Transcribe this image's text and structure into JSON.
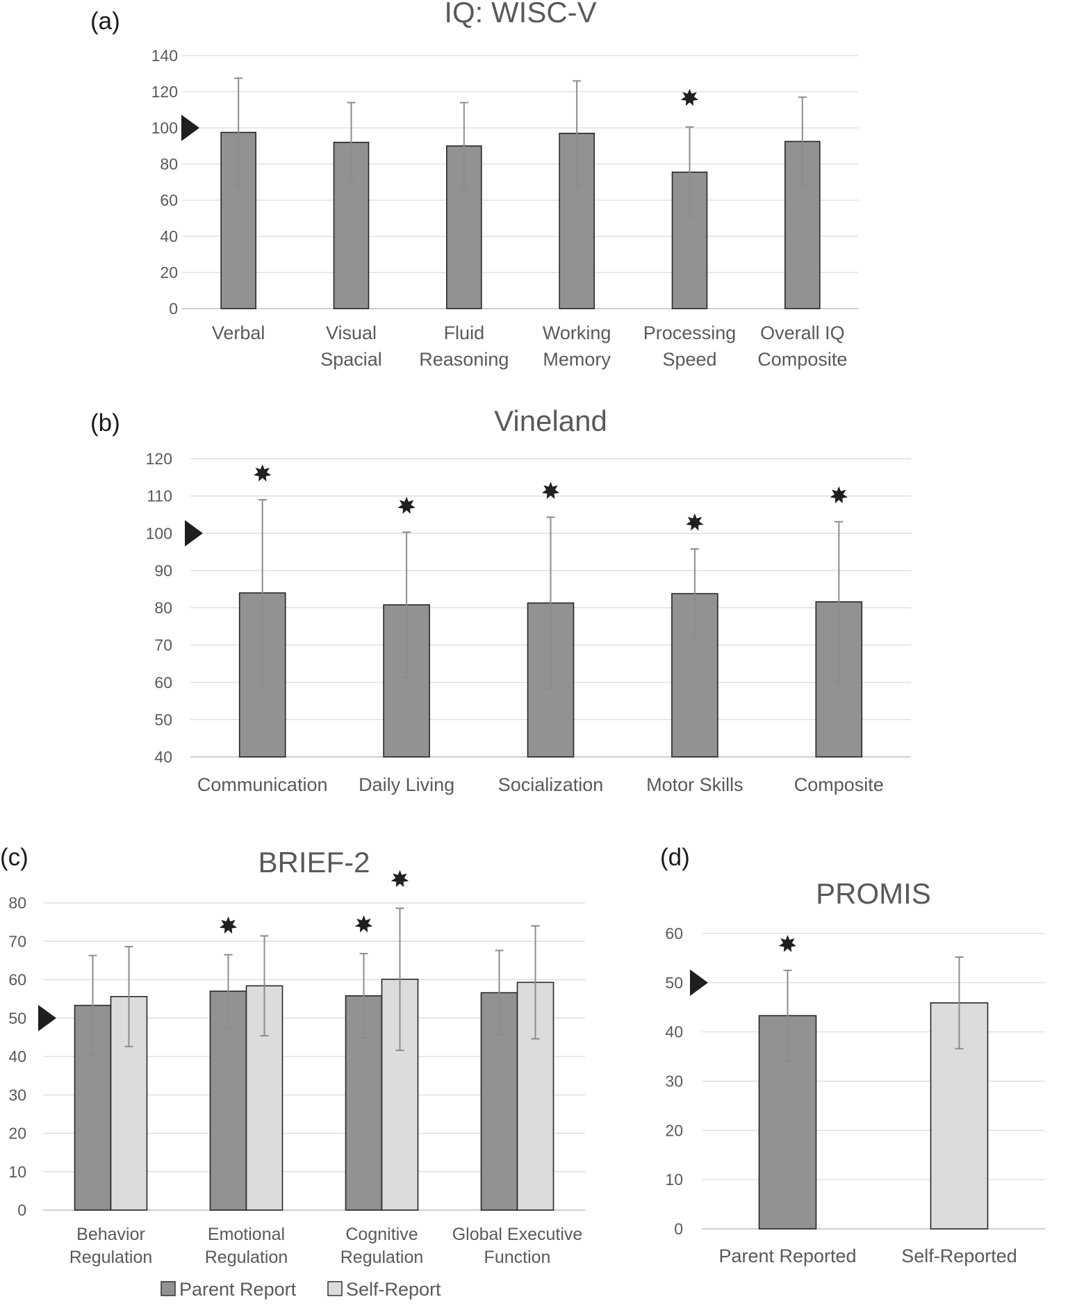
{
  "chart_data": [
    {
      "id": "a",
      "type": "bar",
      "panel_label": "(a)",
      "title": "IQ: WISC-V",
      "categories": [
        [
          "Verbal"
        ],
        [
          "Visual",
          "Spacial"
        ],
        [
          "Fluid",
          "Reasoning"
        ],
        [
          "Working",
          "Memory"
        ],
        [
          "Processing",
          "Speed"
        ],
        [
          "Overall IQ",
          "Composite"
        ]
      ],
      "series": [
        {
          "values": [
            97.5,
            92,
            90,
            97,
            75.5,
            92.5
          ],
          "errors": [
            30,
            22,
            24,
            29,
            25,
            24.5
          ],
          "color": "#929292"
        }
      ],
      "significant": [
        false,
        false,
        false,
        false,
        true,
        false
      ],
      "reference_value": 100,
      "ylim": [
        0,
        140
      ],
      "yticks": [
        0,
        20,
        40,
        60,
        80,
        100,
        120,
        140
      ],
      "grid": true,
      "xlabel": "",
      "ylabel": ""
    },
    {
      "id": "b",
      "type": "bar",
      "panel_label": "(b)",
      "title": "Vineland",
      "categories": [
        [
          "Communication"
        ],
        [
          "Daily Living"
        ],
        [
          "Socialization"
        ],
        [
          "Motor Skills"
        ],
        [
          "Composite"
        ]
      ],
      "series": [
        {
          "values": [
            84,
            80.8,
            81.3,
            83.8,
            81.6
          ],
          "errors": [
            25,
            19.5,
            23,
            12,
            21.5
          ],
          "color": "#929292"
        }
      ],
      "significant": [
        true,
        true,
        true,
        true,
        true
      ],
      "reference_value": 100,
      "ylim": [
        40,
        120
      ],
      "yticks": [
        40,
        50,
        60,
        70,
        80,
        90,
        100,
        110,
        120
      ],
      "grid": true,
      "xlabel": "",
      "ylabel": ""
    },
    {
      "id": "c",
      "type": "bar",
      "panel_label": "(c)",
      "title": "BRIEF-2",
      "categories": [
        [
          "Behavior",
          "Regulation"
        ],
        [
          "Emotional",
          "Regulation"
        ],
        [
          "Cognitive",
          "Regulation"
        ],
        [
          "Global Executive",
          "Function"
        ]
      ],
      "series": [
        {
          "name": "Parent Report",
          "values": [
            53.3,
            57,
            55.8,
            56.6
          ],
          "errors": [
            13,
            9.5,
            11,
            11
          ],
          "color": "#929292",
          "significant": [
            false,
            true,
            true,
            false
          ]
        },
        {
          "name": "Self-Report",
          "values": [
            55.6,
            58.4,
            60.1,
            59.3
          ],
          "errors": [
            13,
            13,
            18.5,
            14.7
          ],
          "color": "#dcdcdc",
          "significant": [
            false,
            false,
            true,
            false
          ]
        }
      ],
      "reference_value": 50,
      "ylim": [
        0,
        80
      ],
      "yticks": [
        0,
        10,
        20,
        30,
        40,
        50,
        60,
        70,
        80
      ],
      "grid": true,
      "legend": "bottom",
      "xlabel": "",
      "ylabel": ""
    },
    {
      "id": "d",
      "type": "bar",
      "panel_label": "(d)",
      "title": "PROMIS",
      "categories": [
        [
          "Parent Reported"
        ],
        [
          "Self-Reported"
        ]
      ],
      "series": [
        {
          "values": [
            43.3,
            45.9
          ],
          "errors": [
            9.2,
            9.3
          ],
          "colors": [
            "#929292",
            "#dcdcdc"
          ]
        }
      ],
      "significant": [
        true,
        false
      ],
      "reference_value": 50,
      "ylim": [
        0,
        60
      ],
      "yticks": [
        0,
        10,
        20,
        30,
        40,
        50,
        60
      ],
      "grid": true,
      "xlabel": "",
      "ylabel": ""
    }
  ]
}
